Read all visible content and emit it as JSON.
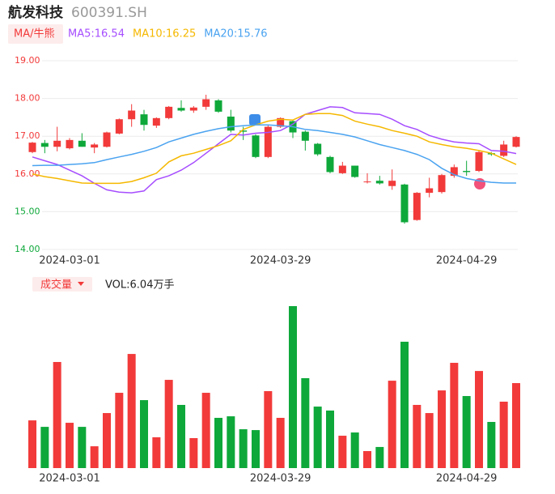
{
  "chart_data": {
    "type": "candlestick",
    "title": "航发科技",
    "code": "600391.SH",
    "indicator_button": "MA/牛熊",
    "volume_button": "成交量",
    "volume_label": "VOL:6.04万手",
    "categories": [
      null,
      null,
      null,
      "2024-03-01",
      null,
      null,
      null,
      null,
      null,
      null,
      null,
      null,
      null,
      null,
      null,
      null,
      null,
      null,
      null,
      null,
      "2024-03-29",
      null,
      null,
      null,
      null,
      null,
      null,
      null,
      null,
      null,
      null,
      null,
      null,
      null,
      null,
      "2024-04-29",
      null,
      null,
      null,
      null
    ],
    "open": [
      16.58,
      16.82,
      16.72,
      16.68,
      16.88,
      16.7,
      16.72,
      17.07,
      17.45,
      17.58,
      17.28,
      17.48,
      17.75,
      17.68,
      17.78,
      17.95,
      17.52,
      17.15,
      17.02,
      16.45,
      17.25,
      17.4,
      17.12,
      16.8,
      16.45,
      16.02,
      16.22,
      15.78,
      15.82,
      15.68,
      15.72,
      14.78,
      15.5,
      15.52,
      15.95,
      16.08,
      16.08,
      16.55,
      16.48,
      16.72
    ],
    "high": [
      16.85,
      16.9,
      17.25,
      16.95,
      17.08,
      16.82,
      17.12,
      17.47,
      17.85,
      17.7,
      17.5,
      17.8,
      17.95,
      17.8,
      18.1,
      17.98,
      17.7,
      17.25,
      17.05,
      17.3,
      17.5,
      17.42,
      17.15,
      16.82,
      16.48,
      16.32,
      16.22,
      16.02,
      15.95,
      16.12,
      15.74,
      15.52,
      15.9,
      16.0,
      16.25,
      16.35,
      16.62,
      16.58,
      16.88,
      17.0
    ],
    "low": [
      16.55,
      16.55,
      16.6,
      16.65,
      16.72,
      16.55,
      16.7,
      17.05,
      17.25,
      17.15,
      17.22,
      17.45,
      17.65,
      17.62,
      17.7,
      17.62,
      17.1,
      16.9,
      16.42,
      16.42,
      17.22,
      16.95,
      16.62,
      16.48,
      16.02,
      16.0,
      15.9,
      15.75,
      15.72,
      15.58,
      14.68,
      14.76,
      15.38,
      15.48,
      15.9,
      15.95,
      16.05,
      16.48,
      16.45,
      16.7
    ],
    "close": [
      16.83,
      16.72,
      16.88,
      16.9,
      16.72,
      16.78,
      17.1,
      17.45,
      17.68,
      17.3,
      17.48,
      17.78,
      17.68,
      17.76,
      17.98,
      17.65,
      17.15,
      17.12,
      16.45,
      17.25,
      17.48,
      17.1,
      16.88,
      16.52,
      16.05,
      16.22,
      15.92,
      15.8,
      15.75,
      15.82,
      14.72,
      15.5,
      15.62,
      15.97,
      16.18,
      16.05,
      16.58,
      16.52,
      16.78,
      16.98
    ],
    "up_color": "#f23a3a",
    "down_color": "#0ea83a",
    "series": [
      {
        "name": "MA5:16.54",
        "color": "#a64dff",
        "values": [
          16.45,
          16.35,
          16.25,
          16.1,
          15.95,
          15.75,
          15.58,
          15.52,
          15.5,
          15.55,
          15.85,
          15.95,
          16.1,
          16.3,
          16.55,
          16.8,
          17.05,
          17.03,
          17.08,
          17.1,
          17.15,
          17.32,
          17.58,
          17.68,
          17.78,
          17.76,
          17.62,
          17.6,
          17.58,
          17.45,
          17.28,
          17.18,
          17.02,
          16.92,
          16.85,
          16.82,
          16.8,
          16.62,
          16.6,
          16.54
        ]
      },
      {
        "name": "MA10:16.25",
        "color": "#f5b800",
        "values": [
          16.0,
          15.93,
          15.88,
          15.82,
          15.76,
          15.75,
          15.75,
          15.75,
          15.8,
          15.9,
          16.02,
          16.32,
          16.48,
          16.55,
          16.65,
          16.75,
          16.88,
          17.18,
          17.3,
          17.4,
          17.45,
          17.43,
          17.58,
          17.6,
          17.6,
          17.55,
          17.4,
          17.32,
          17.25,
          17.15,
          17.08,
          17.0,
          16.85,
          16.78,
          16.72,
          16.68,
          16.62,
          16.55,
          16.4,
          16.25
        ]
      },
      {
        "name": "MA20:15.76",
        "color": "#4aa3f0",
        "values": [
          16.22,
          16.23,
          16.23,
          16.25,
          16.27,
          16.3,
          16.38,
          16.45,
          16.52,
          16.6,
          16.7,
          16.85,
          16.95,
          17.05,
          17.13,
          17.2,
          17.25,
          17.28,
          17.3,
          17.3,
          17.28,
          17.25,
          17.18,
          17.15,
          17.1,
          17.05,
          16.98,
          16.88,
          16.78,
          16.7,
          16.62,
          16.52,
          16.38,
          16.15,
          15.98,
          15.88,
          15.82,
          15.78,
          15.76,
          15.76
        ]
      }
    ],
    "ylim": [
      14,
      19
    ],
    "yticks": [
      {
        "value": 19,
        "label": "19.00"
      },
      {
        "value": 18,
        "label": "18.00"
      },
      {
        "value": 17,
        "label": "17.00"
      },
      {
        "value": 16,
        "label": "16.00"
      },
      {
        "value": 15,
        "label": "15.00"
      },
      {
        "value": 14,
        "label": "14.00"
      }
    ],
    "ytick_colors": [
      "#f23a3a",
      "#f23a3a",
      "#f23a3a",
      "#f23a3a",
      "#0ea83a",
      "#0ea83a"
    ],
    "grid": true,
    "volume": [
      3.39,
      2.93,
      7.54,
      3.22,
      2.93,
      1.55,
      3.91,
      5.35,
      8.11,
      4.83,
      2.19,
      6.27,
      4.49,
      2.13,
      5.35,
      3.57,
      3.68,
      2.76,
      2.7,
      5.47,
      3.57,
      11.51,
      6.39,
      4.37,
      4.09,
      2.3,
      2.53,
      1.21,
      1.5,
      6.21,
      8.98,
      4.49,
      3.91,
      5.52,
      7.48,
      5.12,
      6.9,
      3.28,
      4.72,
      6.04
    ],
    "volume_ylim": [
      0,
      11.51
    ]
  }
}
